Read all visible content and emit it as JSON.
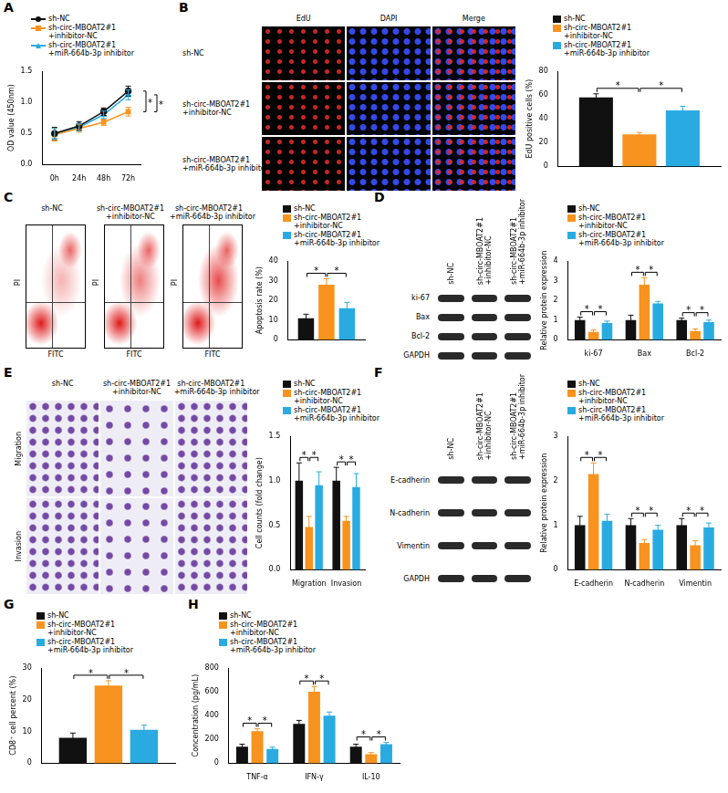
{
  "chart_data": [
    {
      "panel": "A",
      "type": "line",
      "categories": [
        "0h",
        "24h",
        "48h",
        "72h"
      ],
      "ylabel": "OD value (450nm)",
      "ylim": [
        0,
        1.5
      ],
      "yticks": [
        {
          "value": 0,
          "label": "0.0"
        },
        0.5,
        {
          "value": 1,
          "label": "1.0"
        },
        1.5
      ],
      "grid": false,
      "legend": "top",
      "series": [
        {
          "name": "sh-NC",
          "color": "#111111",
          "marker": "circle",
          "values": [
            0.5,
            0.62,
            0.85,
            1.18
          ],
          "error": [
            0.1,
            0.07,
            0.06,
            0.08
          ]
        },
        {
          "name": "sh-circ-MBOAT2#1+inhibitor-NC",
          "color": "#f7931e",
          "marker": "square",
          "values": [
            0.48,
            0.58,
            0.68,
            0.85
          ],
          "error": [
            0.1,
            0.06,
            0.05,
            0.07
          ]
        },
        {
          "name": "sh-circ-MBOAT2#1+miR-664b-3p inhibitor",
          "color": "#29abe2",
          "marker": "triangle",
          "values": [
            0.5,
            0.6,
            0.8,
            1.12
          ],
          "error": [
            0.08,
            0.06,
            0.06,
            0.08
          ]
        }
      ],
      "significance": [
        {
          "label": "*",
          "category": 3,
          "series": [
            0,
            1
          ]
        },
        {
          "label": "*",
          "category": 3,
          "series": [
            1,
            2
          ]
        }
      ]
    },
    {
      "panel": "B",
      "type": "bar",
      "categories": [
        null
      ],
      "ylabel": "EdU positive cells (%)",
      "ylim": [
        0,
        80
      ],
      "yticks": [
        0,
        20,
        40,
        60,
        80
      ],
      "grid": false,
      "legend": "top",
      "series": [
        {
          "name": "sh-NC",
          "color": "#111111",
          "values": [
            58
          ],
          "error": [
            3
          ]
        },
        {
          "name": "sh-circ-MBOAT2#1+inhibitor-NC",
          "color": "#f7931e",
          "values": [
            27
          ],
          "error": [
            1.5
          ]
        },
        {
          "name": "sh-circ-MBOAT2#1+miR-664b-3p inhibitor",
          "color": "#29abe2",
          "values": [
            47
          ],
          "error": [
            3.5
          ]
        }
      ],
      "significance": [
        {
          "label": "*",
          "category": 0,
          "series": [
            0,
            1
          ]
        },
        {
          "label": "*",
          "category": 0,
          "series": [
            1,
            2
          ]
        }
      ]
    },
    {
      "panel": "C",
      "type": "bar",
      "categories": [
        null
      ],
      "ylabel": "Apoptosis rate (%)",
      "ylim": [
        0,
        40
      ],
      "yticks": [
        0,
        10,
        20,
        30,
        40
      ],
      "grid": false,
      "legend": "top",
      "series": [
        {
          "name": "sh-NC",
          "color": "#111111",
          "values": [
            11
          ],
          "error": [
            2
          ]
        },
        {
          "name": "sh-circ-MBOAT2#1+inhibitor-NC",
          "color": "#f7931e",
          "values": [
            28
          ],
          "error": [
            3
          ]
        },
        {
          "name": "sh-circ-MBOAT2#1+miR-664b-3p inhibitor",
          "color": "#29abe2",
          "values": [
            16
          ],
          "error": [
            3
          ]
        }
      ],
      "significance": [
        {
          "label": "*",
          "category": 0,
          "series": [
            0,
            1
          ]
        },
        {
          "label": "*",
          "category": 0,
          "series": [
            1,
            2
          ]
        }
      ]
    },
    {
      "panel": "D",
      "type": "bar",
      "categories": [
        "ki-67",
        "Bax",
        "Bcl-2"
      ],
      "ylabel": "Relative protein expression",
      "ylim": [
        0,
        4
      ],
      "yticks": [
        0,
        1,
        2,
        3,
        4
      ],
      "grid": false,
      "legend": "top",
      "series": [
        {
          "name": "sh-NC",
          "color": "#111111",
          "values": [
            1,
            1,
            1
          ],
          "error": [
            0.15,
            0.25,
            0.1
          ]
        },
        {
          "name": "sh-circ-MBOAT2#1+inhibitor-NC",
          "color": "#f7931e",
          "values": [
            0.4,
            2.8,
            0.45
          ],
          "error": [
            0.1,
            0.35,
            0.1
          ]
        },
        {
          "name": "sh-circ-MBOAT2#1+miR-664b-3p inhibitor",
          "color": "#29abe2",
          "values": [
            0.85,
            1.85,
            0.9
          ],
          "error": [
            0.1,
            0.1,
            0.1
          ]
        }
      ],
      "significance": [
        {
          "label": "*",
          "category": 0,
          "series": [
            0,
            1
          ]
        },
        {
          "label": "*",
          "category": 0,
          "series": [
            1,
            2
          ]
        },
        {
          "label": "*",
          "category": 1,
          "series": [
            0,
            1
          ]
        },
        {
          "label": "*",
          "category": 1,
          "series": [
            1,
            2
          ]
        },
        {
          "label": "*",
          "category": 2,
          "series": [
            0,
            1
          ]
        },
        {
          "label": "*",
          "category": 2,
          "series": [
            1,
            2
          ]
        }
      ]
    },
    {
      "panel": "E",
      "type": "bar",
      "categories": [
        "Migration",
        "Invasion"
      ],
      "ylabel": "Cell counts (fold change)",
      "ylim": [
        0,
        1.5
      ],
      "yticks": [
        {
          "value": 0,
          "label": "0.0"
        },
        0.5,
        {
          "value": 1,
          "label": "1.0"
        },
        1.5
      ],
      "grid": false,
      "legend": "top",
      "series": [
        {
          "name": "sh-NC",
          "color": "#111111",
          "values": [
            1,
            1
          ],
          "error": [
            0.2,
            0.15
          ]
        },
        {
          "name": "sh-circ-MBOAT2#1+inhibitor-NC",
          "color": "#f7931e",
          "values": [
            0.48,
            0.55
          ],
          "error": [
            0.12,
            0.05
          ]
        },
        {
          "name": "sh-circ-MBOAT2#1+miR-664b-3p inhibitor",
          "color": "#29abe2",
          "values": [
            0.95,
            0.93
          ],
          "error": [
            0.15,
            0.15
          ]
        }
      ],
      "significance": [
        {
          "label": "*",
          "category": 0,
          "series": [
            0,
            1
          ]
        },
        {
          "label": "*",
          "category": 0,
          "series": [
            1,
            2
          ]
        },
        {
          "label": "*",
          "category": 1,
          "series": [
            0,
            1
          ]
        },
        {
          "label": "*",
          "category": 1,
          "series": [
            1,
            2
          ]
        }
      ]
    },
    {
      "panel": "F",
      "type": "bar",
      "categories": [
        "E-cadherin",
        "N-cadherin",
        "Vimentin"
      ],
      "ylabel": "Relative protein expression",
      "ylim": [
        0,
        3
      ],
      "yticks": [
        0,
        1,
        2,
        3
      ],
      "grid": false,
      "legend": "top",
      "series": [
        {
          "name": "sh-NC",
          "color": "#111111",
          "values": [
            1,
            1,
            1
          ],
          "error": [
            0.2,
            0.15,
            0.15
          ]
        },
        {
          "name": "sh-circ-MBOAT2#1+inhibitor-NC",
          "color": "#f7931e",
          "values": [
            2.15,
            0.6,
            0.55
          ],
          "error": [
            0.25,
            0.08,
            0.1
          ]
        },
        {
          "name": "sh-circ-MBOAT2#1+miR-664b-3p inhibitor",
          "color": "#29abe2",
          "values": [
            1.1,
            0.9,
            0.95
          ],
          "error": [
            0.15,
            0.1,
            0.1
          ]
        }
      ],
      "significance": [
        {
          "label": "*",
          "category": 0,
          "series": [
            0,
            1
          ]
        },
        {
          "label": "*",
          "category": 0,
          "series": [
            1,
            2
          ]
        },
        {
          "label": "*",
          "category": 1,
          "series": [
            0,
            1
          ]
        },
        {
          "label": "*",
          "category": 1,
          "series": [
            1,
            2
          ]
        },
        {
          "label": "*",
          "category": 2,
          "series": [
            0,
            1
          ]
        },
        {
          "label": "*",
          "category": 2,
          "series": [
            1,
            2
          ]
        }
      ]
    },
    {
      "panel": "G",
      "type": "bar",
      "categories": [
        null
      ],
      "ylabel": "CD8⁺ cell percent (%)",
      "ylim": [
        0,
        30
      ],
      "yticks": [
        0,
        10,
        20,
        30
      ],
      "grid": false,
      "legend": "top",
      "series": [
        {
          "name": "sh-NC",
          "color": "#111111",
          "values": [
            8
          ],
          "error": [
            1.5
          ]
        },
        {
          "name": "sh-circ-MBOAT2#1+inhibitor-NC",
          "color": "#f7931e",
          "values": [
            24.5
          ],
          "error": [
            1.5
          ]
        },
        {
          "name": "sh-circ-MBOAT2#1+miR-664b-3p inhibitor",
          "color": "#29abe2",
          "values": [
            10.5
          ],
          "error": [
            1.5
          ]
        }
      ],
      "significance": [
        {
          "label": "*",
          "category": 0,
          "series": [
            0,
            1
          ]
        },
        {
          "label": "*",
          "category": 0,
          "series": [
            1,
            2
          ]
        }
      ]
    },
    {
      "panel": "H",
      "type": "bar",
      "categories": [
        "TNF-α",
        "IFN-γ",
        "IL-10"
      ],
      "ylabel": "Concentration (pg/mL)",
      "ylim": [
        0,
        800
      ],
      "yticks": [
        0,
        200,
        400,
        600,
        800
      ],
      "grid": false,
      "legend": "top",
      "series": [
        {
          "name": "sh-NC",
          "color": "#111111",
          "values": [
            140,
            330,
            140
          ],
          "error": [
            20,
            30,
            20
          ]
        },
        {
          "name": "sh-circ-MBOAT2#1+inhibitor-NC",
          "color": "#f7931e",
          "values": [
            270,
            600,
            75
          ],
          "error": [
            20,
            45,
            15
          ]
        },
        {
          "name": "sh-circ-MBOAT2#1+miR-664b-3p inhibitor",
          "color": "#29abe2",
          "values": [
            120,
            400,
            160
          ],
          "error": [
            15,
            30,
            15
          ]
        }
      ],
      "significance": [
        {
          "label": "*",
          "category": 0,
          "series": [
            0,
            1
          ]
        },
        {
          "label": "*",
          "category": 0,
          "series": [
            1,
            2
          ]
        },
        {
          "label": "*",
          "category": 1,
          "series": [
            0,
            1
          ]
        },
        {
          "label": "*",
          "category": 1,
          "series": [
            1,
            2
          ]
        },
        {
          "label": "*",
          "category": 2,
          "series": [
            0,
            1
          ]
        },
        {
          "label": "*",
          "category": 2,
          "series": [
            1,
            2
          ]
        }
      ]
    }
  ],
  "images": {
    "B": {
      "columns": [
        "EdU",
        "DAPI",
        "Merge"
      ],
      "rows": [
        "sh-NC",
        "sh-circ-MBOAT2#1+inhibitor-NC",
        "sh-circ-MBOAT2#1+miR-664b-3p inhibitor"
      ]
    },
    "C": {
      "titles": [
        "sh-NC",
        "sh-circ-MBOAT2#1+inhibitor-NC",
        "sh-circ-MBOAT2#1+miR-664b-3p inhibitor"
      ],
      "x_label": "FITC",
      "y_label": "PI"
    },
    "D": {
      "lanes": [
        "sh-NC",
        "sh-circ-MBOAT2#1+inhibitor-NC",
        "sh-circ-MBOAT2#1+miR-664b-3p inhibitor"
      ],
      "bands": [
        "ki-67",
        "Bax",
        "Bcl-2",
        "GAPDH"
      ]
    },
    "E": {
      "columns": [
        "sh-NC",
        "sh-circ-MBOAT2#1+inhibitor-NC",
        "sh-circ-MBOAT2#1+miR-664b-3p inhibitor"
      ],
      "rows": [
        "Migration",
        "Invasion"
      ]
    },
    "F": {
      "lanes": [
        "sh-NC",
        "sh-circ-MBOAT2#1+inhibitor-NC",
        "sh-circ-MBOAT2#1+miR-664b-3p inhibitor"
      ],
      "bands": [
        "E-cadherin",
        "N-cadherin",
        "Vimentin",
        "GAPDH"
      ]
    }
  }
}
